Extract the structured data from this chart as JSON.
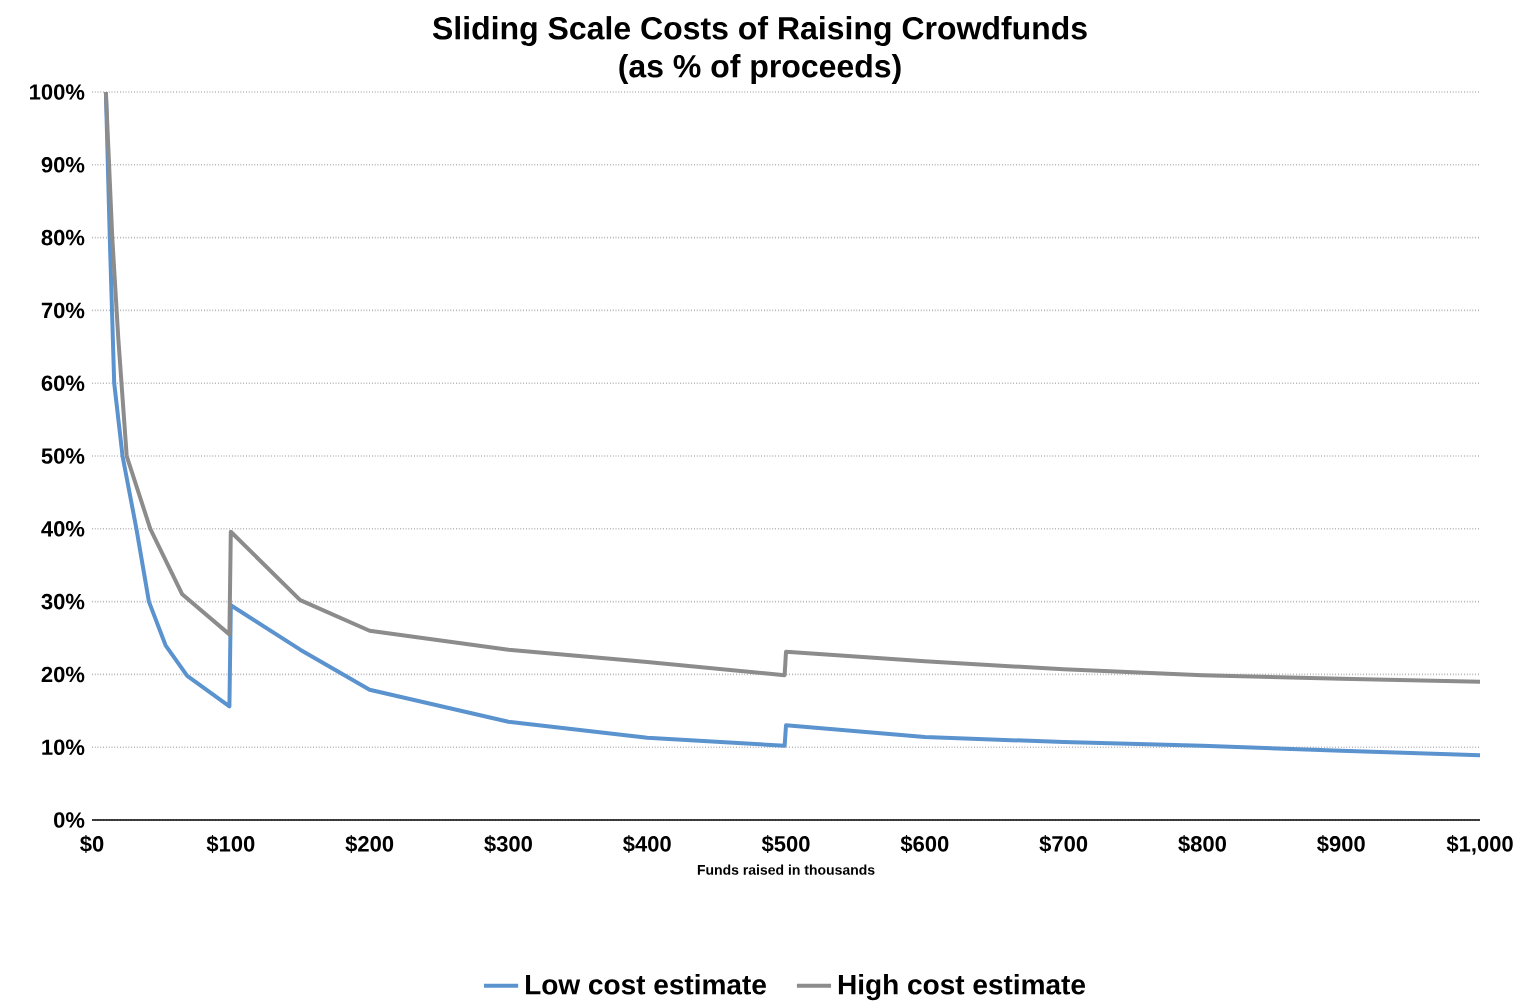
{
  "chart_data": {
    "type": "line",
    "title": "Sliding Scale Costs of Raising Crowdfunds",
    "subtitle": "(as % of proceeds)",
    "xlabel": "Funds raised in thousands",
    "xlim": [
      0,
      1000
    ],
    "ylim": [
      0,
      100
    ],
    "xticks": [
      {
        "value": 0,
        "label": "$0"
      },
      {
        "value": 100,
        "label": "$100"
      },
      {
        "value": 200,
        "label": "$200"
      },
      {
        "value": 300,
        "label": "$300"
      },
      {
        "value": 400,
        "label": "$400"
      },
      {
        "value": 500,
        "label": "$500"
      },
      {
        "value": 600,
        "label": "$600"
      },
      {
        "value": 700,
        "label": "$700"
      },
      {
        "value": 800,
        "label": "$800"
      },
      {
        "value": 900,
        "label": "$900"
      },
      {
        "value": 1000,
        "label": "$1,000"
      }
    ],
    "yticks": [
      {
        "value": 0,
        "label": "0%"
      },
      {
        "value": 10,
        "label": "10%"
      },
      {
        "value": 20,
        "label": "20%"
      },
      {
        "value": 30,
        "label": "30%"
      },
      {
        "value": 40,
        "label": "40%"
      },
      {
        "value": 50,
        "label": "50%"
      },
      {
        "value": 60,
        "label": "60%"
      },
      {
        "value": 70,
        "label": "70%"
      },
      {
        "value": 80,
        "label": "80%"
      },
      {
        "value": 90,
        "label": "90%"
      },
      {
        "value": 100,
        "label": "100%"
      }
    ],
    "grid": "y",
    "legend": "bottom",
    "line_style": "solid",
    "series": [
      {
        "name": "Low cost estimate",
        "color": "#5b93cf",
        "x": [
          10,
          12.8,
          16,
          22,
          32,
          41,
          53,
          68.6,
          99,
          100,
          150,
          200,
          300,
          400,
          499,
          500,
          600,
          700,
          800,
          900,
          1000
        ],
        "values": [
          100,
          80,
          60,
          50,
          40,
          30,
          24,
          19.8,
          15.6,
          29.5,
          23.4,
          17.9,
          13.5,
          11.3,
          10.2,
          13,
          11.4,
          10.7,
          10.2,
          9.5,
          8.9
        ]
      },
      {
        "name": "High cost estimate",
        "color": "#8c8c8c",
        "x": [
          10,
          14.6,
          19,
          25,
          42,
          65,
          99,
          100,
          150,
          200,
          300,
          400,
          499,
          500,
          600,
          700,
          800,
          900,
          1000
        ],
        "values": [
          100,
          80,
          66,
          50,
          40,
          31,
          25.5,
          39.6,
          30.2,
          26,
          23.4,
          21.7,
          19.9,
          23.1,
          21.8,
          20.7,
          19.9,
          19.4,
          19
        ]
      }
    ]
  }
}
